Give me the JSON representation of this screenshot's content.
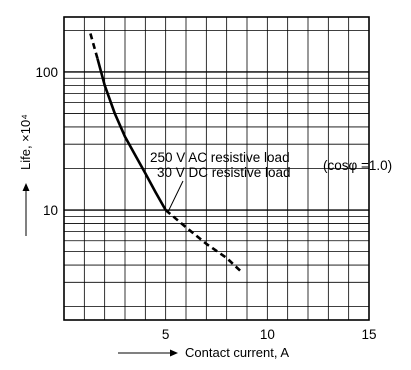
{
  "chart_data": {
    "type": "line",
    "y_scale": "log",
    "xlim": [
      0,
      15
    ],
    "ylim": [
      1.6,
      250
    ],
    "grid": true,
    "xlabel": "Contact current, A",
    "ylabel": "Life, ×10⁴",
    "x_ticks": [
      {
        "value": 5,
        "label": "5"
      },
      {
        "value": 10,
        "label": "10"
      },
      {
        "value": 15,
        "label": "15"
      }
    ],
    "y_ticks": [
      {
        "value": 10,
        "label": "10"
      },
      {
        "value": 100,
        "label": "100"
      }
    ],
    "annotation_lines": [
      "250 V AC resistive load",
      "30 V DC resistive load"
    ],
    "annotation_condition": "(cosφ =1.0)",
    "series": [
      {
        "style": "dashed",
        "points": [
          [
            1.3,
            190
          ],
          [
            1.65,
            125
          ]
        ]
      },
      {
        "style": "solid",
        "points": [
          [
            1.65,
            125
          ],
          [
            2.0,
            80
          ],
          [
            2.5,
            50
          ],
          [
            3.0,
            34
          ],
          [
            3.5,
            25
          ],
          [
            4.0,
            18.5
          ],
          [
            4.5,
            13.5
          ],
          [
            5.0,
            10
          ]
        ]
      },
      {
        "style": "dashed",
        "points": [
          [
            5.0,
            10
          ],
          [
            6.0,
            7.5
          ],
          [
            7.0,
            5.7
          ],
          [
            8.0,
            4.5
          ],
          [
            8.7,
            3.6
          ]
        ]
      }
    ]
  }
}
